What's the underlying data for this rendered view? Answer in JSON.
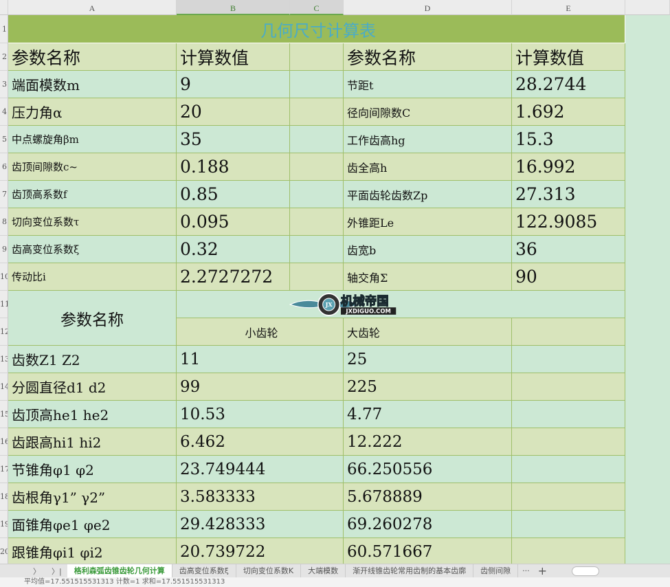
{
  "columns": [
    "A",
    "B",
    "C",
    "D",
    "E"
  ],
  "row_numbers": [
    "1",
    "2",
    "3",
    "4",
    "5",
    "6",
    "7",
    "8",
    "9",
    "10",
    "11",
    "12",
    "13",
    "14",
    "15",
    "16",
    "17",
    "18",
    "19",
    "20"
  ],
  "title": "几何尺寸计算表",
  "header": {
    "a": "参数名称",
    "b": "计算数值",
    "d": "参数名称",
    "e": "计算数值"
  },
  "params": [
    {
      "a": "端面模数m",
      "b": "9",
      "d": "节距t",
      "e": "28.2744"
    },
    {
      "a": "压力角α",
      "b": "20",
      "d": "径向间隙数C",
      "e": "1.692"
    },
    {
      "a": "中点螺旋角βm",
      "b": "35",
      "d": "工作齿高hg",
      "e": "15.3"
    },
    {
      "a": "齿顶间隙数c~",
      "b": "0.188",
      "d": "齿全高h",
      "e": "16.992"
    },
    {
      "a": "齿顶高系数f",
      "b": "0.85",
      "d": "平面齿轮齿数Zp",
      "e": "27.313"
    },
    {
      "a": "切向变位系数τ",
      "b": "0.095",
      "d": "外锥距Le",
      "e": "122.9085"
    },
    {
      "a": "齿高变位系数ξ",
      "b": "0.32",
      "d": "齿宽b",
      "e": "36"
    },
    {
      "a": "传动比i",
      "b": "2.2727272",
      "d": "轴交角Σ",
      "e": "90"
    }
  ],
  "section2": {
    "header": "参数名称",
    "small": "小齿轮",
    "large": "大齿轮"
  },
  "gears": [
    {
      "a": "齿数Z1 Z2",
      "b": "11",
      "d": "25"
    },
    {
      "a": "分圆直径d1 d2",
      "b": "99",
      "d": "225"
    },
    {
      "a": "齿顶高he1 he2",
      "b": "10.53",
      "d": "4.77"
    },
    {
      "a": "齿跟高hi1 hi2",
      "b": "6.462",
      "d": "12.222"
    },
    {
      "a": "节锥角φ1  φ2",
      "b": "23.749444",
      "d": "66.250556"
    },
    {
      "a": "齿根角γ1”  γ2”",
      "b": "3.583333",
      "d": "5.678889"
    },
    {
      "a": "面锥角φe1  φe2",
      "b": "29.428333",
      "d": "69.260278"
    },
    {
      "a": "跟锥角φi1  φi2",
      "b": "20.739722",
      "d": "60.571667"
    }
  ],
  "watermark": {
    "cn": "机械帝国",
    "en": "JXDIGUO.COM",
    "badge": "JX"
  },
  "tabs": {
    "nav_next": "〉",
    "nav_last": "〉|",
    "items": [
      "格利森弧齿锥齿轮几何计算",
      "齿高变位系数ξ",
      "切向变位系数K",
      "大端模数",
      "渐开线锥齿轮常用齿制的基本齿廓",
      "齿侧间隙"
    ],
    "more": "···",
    "add": "+"
  },
  "status": "平均值=17.551515531313  计数=1  求和=17.551515531313",
  "colors": {
    "title_bg": "#9bbb59",
    "title_text": "#4bacc6",
    "mint": "#cce8d4",
    "olive": "#d8e4bc"
  }
}
